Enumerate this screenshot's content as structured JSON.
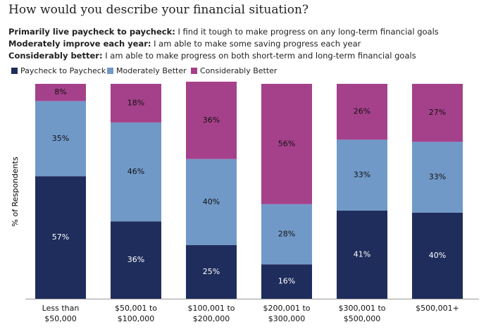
{
  "chart_data": {
    "type": "stacked_bar",
    "title": "How would you describe your financial situation?",
    "definitions": [
      {
        "term": "Primarily live paycheck to paycheck:",
        "text": "I find it tough to make progress on any long-term financial goals"
      },
      {
        "term": "Moderately improve each year:",
        "text": "I am able to make some saving progress each year"
      },
      {
        "term": "Considerably better:",
        "text": "I am able to make progress on both short-term and long-term financial goals"
      }
    ],
    "y_label": "% of Respondents",
    "categories": [
      "Less than $50,000",
      "$50,001 to $100,000",
      "$100,001 to $200,000",
      "$200,001 to $300,000",
      "$300,001 to $500,000",
      "$500,001+"
    ],
    "series": [
      {
        "name": "Paycheck to Paycheck",
        "color": "#1f2d5c",
        "values": [
          57,
          36,
          25,
          16,
          41,
          40
        ],
        "value_labels": [
          "57%",
          "36%",
          "25%",
          "16%",
          "41%",
          "40%"
        ]
      },
      {
        "name": "Moderately Better",
        "color": "#7199c8",
        "values": [
          35,
          46,
          40,
          28,
          33,
          33
        ],
        "value_labels": [
          "35%",
          "46%",
          "40%",
          "28%",
          "33%",
          "33%"
        ]
      },
      {
        "name": "Considerably Better",
        "color": "#a5418b",
        "values": [
          8,
          18,
          36,
          56,
          26,
          27
        ],
        "value_labels": [
          "8%",
          "18%",
          "36%",
          "56%",
          "26%",
          "27%"
        ]
      }
    ],
    "ylim": [
      0,
      100
    ]
  }
}
